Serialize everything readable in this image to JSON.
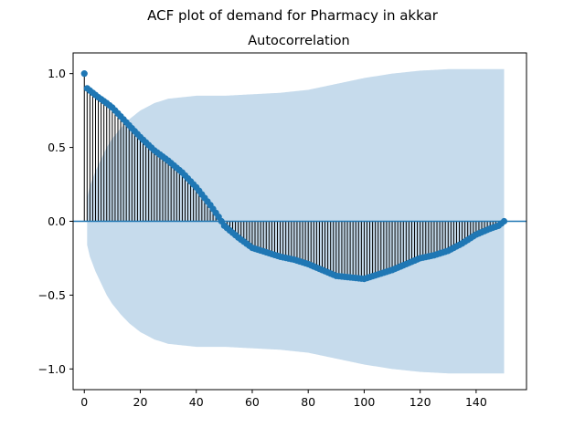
{
  "chart_data": {
    "type": "stem",
    "suptitle": "ACF plot of demand for Pharmacy in akkar",
    "title": "Autocorrelation",
    "xlabel": "",
    "ylabel": "",
    "xlim": [
      -4,
      158
    ],
    "ylim": [
      -1.14,
      1.14
    ],
    "xticks": [
      0,
      20,
      40,
      60,
      80,
      100,
      120,
      140
    ],
    "yticks": [
      -1.0,
      -0.5,
      0.0,
      0.5,
      1.0
    ],
    "ytick_labels": [
      "−1.0",
      "−0.5",
      "0.0",
      "0.5",
      "1.0"
    ],
    "grid": false,
    "colors": {
      "marker": "#1f77b4",
      "stem": "#000000",
      "confidence_band": "#c6dbec",
      "zero_line": "#1f77b4"
    },
    "acf_knots": [
      [
        0,
        1.0
      ],
      [
        1,
        0.9
      ],
      [
        3,
        0.87
      ],
      [
        5,
        0.84
      ],
      [
        8,
        0.8
      ],
      [
        10,
        0.77
      ],
      [
        15,
        0.67
      ],
      [
        20,
        0.57
      ],
      [
        25,
        0.48
      ],
      [
        30,
        0.41
      ],
      [
        35,
        0.33
      ],
      [
        40,
        0.23
      ],
      [
        45,
        0.11
      ],
      [
        48,
        0.03
      ],
      [
        50,
        -0.03
      ],
      [
        55,
        -0.11
      ],
      [
        60,
        -0.18
      ],
      [
        65,
        -0.21
      ],
      [
        70,
        -0.24
      ],
      [
        75,
        -0.26
      ],
      [
        80,
        -0.29
      ],
      [
        85,
        -0.33
      ],
      [
        90,
        -0.37
      ],
      [
        95,
        -0.38
      ],
      [
        100,
        -0.39
      ],
      [
        105,
        -0.36
      ],
      [
        110,
        -0.33
      ],
      [
        115,
        -0.29
      ],
      [
        120,
        -0.25
      ],
      [
        125,
        -0.23
      ],
      [
        130,
        -0.2
      ],
      [
        135,
        -0.15
      ],
      [
        140,
        -0.09
      ],
      [
        145,
        -0.05
      ],
      [
        148,
        -0.03
      ],
      [
        150,
        0.0
      ]
    ],
    "confidence_band_knots": [
      [
        1,
        0.16
      ],
      [
        2,
        0.24
      ],
      [
        4,
        0.34
      ],
      [
        6,
        0.42
      ],
      [
        8,
        0.5
      ],
      [
        10,
        0.56
      ],
      [
        13,
        0.63
      ],
      [
        16,
        0.69
      ],
      [
        20,
        0.75
      ],
      [
        25,
        0.8
      ],
      [
        30,
        0.83
      ],
      [
        40,
        0.85
      ],
      [
        50,
        0.85
      ],
      [
        60,
        0.86
      ],
      [
        70,
        0.87
      ],
      [
        80,
        0.89
      ],
      [
        90,
        0.93
      ],
      [
        100,
        0.97
      ],
      [
        110,
        1.0
      ],
      [
        120,
        1.02
      ],
      [
        130,
        1.03
      ],
      [
        140,
        1.03
      ],
      [
        150,
        1.03
      ]
    ]
  }
}
